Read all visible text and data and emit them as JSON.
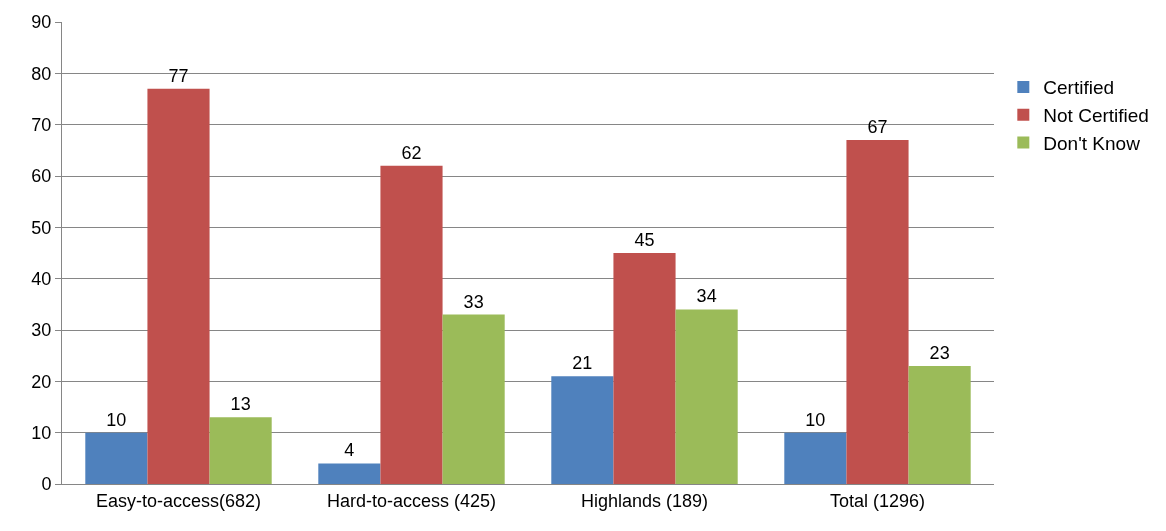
{
  "chart_data": {
    "type": "bar",
    "categories": [
      "Easy-to-access(682)",
      "Hard-to-access (425)",
      "Highlands (189)",
      "Total (1296)"
    ],
    "series": [
      {
        "name": "Certified",
        "color": "#4f81bd",
        "values": [
          10,
          4,
          21,
          10
        ]
      },
      {
        "name": "Not Certified",
        "color": "#c0504d",
        "values": [
          77,
          62,
          45,
          67
        ]
      },
      {
        "name": "Don't Know",
        "color": "#9bbb59",
        "values": [
          13,
          33,
          34,
          23
        ]
      }
    ],
    "ylim": [
      0,
      90
    ],
    "yticks": [
      0,
      10,
      20,
      30,
      40,
      50,
      60,
      70,
      80,
      90
    ],
    "grid": "y",
    "legend": "top right",
    "data_labels": true
  }
}
